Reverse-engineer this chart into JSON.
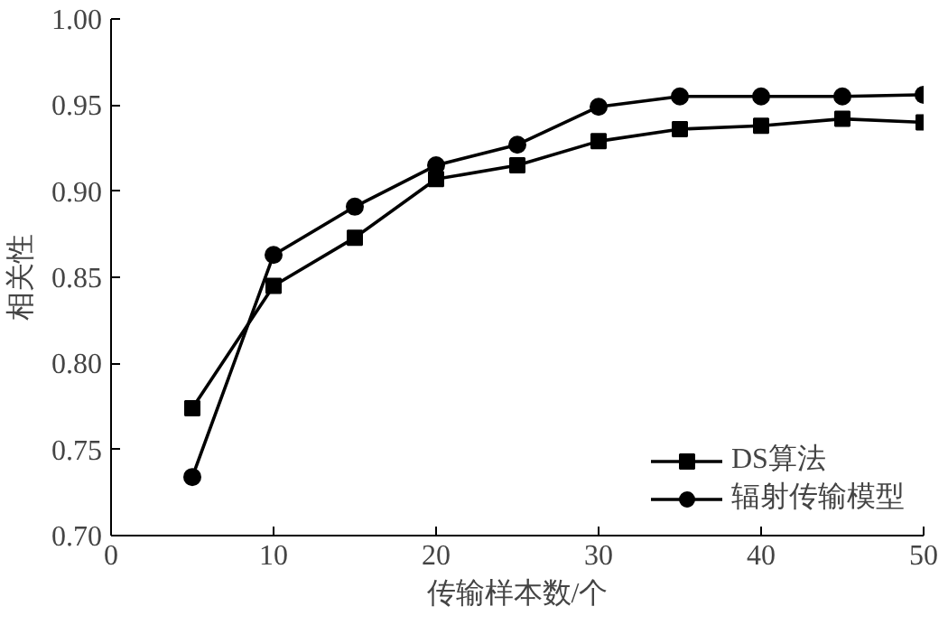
{
  "chart_data": {
    "type": "line",
    "xlabel": "传输样本数/个",
    "ylabel": "相关性",
    "x": [
      5,
      10,
      15,
      20,
      25,
      30,
      35,
      40,
      45,
      50
    ],
    "series": [
      {
        "name": "DS算法",
        "color": "#000000",
        "marker": "square",
        "values": [
          0.774,
          0.845,
          0.873,
          0.907,
          0.915,
          0.929,
          0.936,
          0.938,
          0.942,
          0.94
        ]
      },
      {
        "name": "辐射传输模型",
        "color": "#000000",
        "marker": "circle",
        "values": [
          0.734,
          0.863,
          0.891,
          0.915,
          0.927,
          0.949,
          0.955,
          0.955,
          0.955,
          0.956
        ]
      }
    ],
    "xlim": [
      0,
      50
    ],
    "xticks": [
      0,
      10,
      20,
      30,
      40,
      50
    ],
    "ylim": [
      0.7,
      1.0
    ],
    "yticks": [
      {
        "value": 0.7,
        "label": "0.70"
      },
      {
        "value": 0.75,
        "label": "0.75"
      },
      {
        "value": 0.8,
        "label": "0.80"
      },
      {
        "value": 0.85,
        "label": "0.85"
      },
      {
        "value": 0.9,
        "label": "0.90"
      },
      {
        "value": 0.95,
        "label": "0.95"
      },
      {
        "value": 1.0,
        "label": "1.00"
      }
    ],
    "grid": false,
    "legend": "bottom right",
    "line_style": "solid"
  }
}
